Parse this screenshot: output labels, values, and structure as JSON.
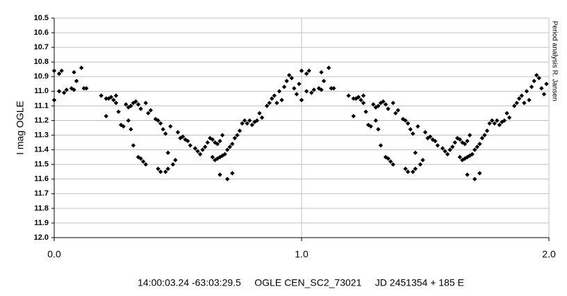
{
  "chart_data": {
    "type": "scatter",
    "ylabel": "I mag OGLE",
    "xlabel": "14:00:03.24 -63:03:29.5     OGLE CEN_SC2_73021     JD 2451354 + 185 E",
    "side_note": "Period analysis  R. Jansen",
    "color": "#000000",
    "invert_y": true,
    "grid": true,
    "xlim": [
      0,
      2
    ],
    "ylim": [
      10.5,
      12
    ],
    "xticks": [
      {
        "value": 0,
        "label": "0.0"
      },
      {
        "value": 1,
        "label": "1.0"
      },
      {
        "value": 2,
        "label": "2.0"
      }
    ],
    "yticks": [
      10.5,
      10.6,
      10.7,
      10.8,
      10.9,
      {
        "value": 11,
        "label": "11.0"
      },
      11.1,
      11.2,
      11.3,
      11.4,
      11.5,
      11.6,
      11.7,
      11.8,
      11.9,
      {
        "value": 12,
        "label": "12.0"
      }
    ],
    "x": [
      0.0,
      0.0,
      0.02,
      0.03,
      0.02,
      0.04,
      0.05,
      0.07,
      0.08,
      0.09,
      0.08,
      0.11,
      0.12,
      0.13,
      0.19,
      0.21,
      0.22,
      0.23,
      0.24,
      0.25,
      0.25,
      0.21,
      0.26,
      0.27,
      0.28,
      0.29,
      0.3,
      0.31,
      0.32,
      0.33,
      0.34,
      0.35,
      0.37,
      0.3,
      0.31,
      0.32,
      0.34,
      0.35,
      0.36,
      0.37,
      0.38,
      0.39,
      0.41,
      0.42,
      0.43,
      0.44,
      0.45,
      0.42,
      0.43,
      0.45,
      0.46,
      0.46,
      0.48,
      0.49,
      0.47,
      0.5,
      0.51,
      0.52,
      0.53,
      0.54,
      0.55,
      0.57,
      0.58,
      0.59,
      0.6,
      0.61,
      0.62,
      0.63,
      0.64,
      0.65,
      0.66,
      0.67,
      0.68,
      0.64,
      0.65,
      0.66,
      0.67,
      0.68,
      0.69,
      0.67,
      0.7,
      0.72,
      0.7,
      0.71,
      0.72,
      0.73,
      0.74,
      0.75,
      0.76,
      0.77,
      0.78,
      0.79,
      0.8,
      0.81,
      0.82,
      0.83,
      0.84,
      0.86,
      0.87,
      0.88,
      0.89,
      0.9,
      0.91,
      0.92,
      0.93,
      0.94,
      0.95,
      0.96,
      0.97,
      0.98,
      0.99,
      1.0,
      1.0,
      1.02,
      1.03,
      1.02,
      1.04,
      1.05,
      1.07,
      1.08,
      1.09,
      1.08,
      1.11,
      1.12,
      1.13,
      1.19,
      1.21,
      1.22,
      1.23,
      1.24,
      1.25,
      1.25,
      1.21,
      1.26,
      1.27,
      1.28,
      1.29,
      1.3,
      1.31,
      1.32,
      1.33,
      1.34,
      1.35,
      1.37,
      1.3,
      1.31,
      1.32,
      1.34,
      1.35,
      1.36,
      1.37,
      1.38,
      1.39,
      1.41,
      1.42,
      1.43,
      1.44,
      1.45,
      1.42,
      1.43,
      1.45,
      1.46,
      1.46,
      1.48,
      1.49,
      1.47,
      1.5,
      1.51,
      1.52,
      1.53,
      1.54,
      1.55,
      1.57,
      1.58,
      1.59,
      1.6,
      1.61,
      1.62,
      1.63,
      1.64,
      1.65,
      1.66,
      1.67,
      1.68,
      1.64,
      1.65,
      1.66,
      1.67,
      1.68,
      1.69,
      1.67,
      1.7,
      1.72,
      1.7,
      1.71,
      1.72,
      1.73,
      1.74,
      1.75,
      1.76,
      1.77,
      1.78,
      1.79,
      1.8,
      1.81,
      1.82,
      1.83,
      1.84,
      1.86,
      1.87,
      1.88,
      1.89,
      1.9,
      1.91,
      1.92,
      1.93,
      1.94,
      1.95,
      1.96,
      1.97,
      1.98,
      1.99
    ],
    "values": [
      10.86,
      11.06,
      10.88,
      10.86,
      11.0,
      11.01,
      10.99,
      10.98,
      10.87,
      10.93,
      10.99,
      10.84,
      10.98,
      10.98,
      11.03,
      11.05,
      11.05,
      11.04,
      11.06,
      11.03,
      11.08,
      11.17,
      11.14,
      11.23,
      11.24,
      11.09,
      11.11,
      11.1,
      11.08,
      11.07,
      11.09,
      11.12,
      11.08,
      11.2,
      11.26,
      11.37,
      11.45,
      11.46,
      11.48,
      11.5,
      11.15,
      11.13,
      11.19,
      11.2,
      11.22,
      11.26,
      11.29,
      11.53,
      11.55,
      11.55,
      11.53,
      11.42,
      11.5,
      11.47,
      11.24,
      11.28,
      11.32,
      11.31,
      11.33,
      11.34,
      11.37,
      11.39,
      11.41,
      11.43,
      11.4,
      11.38,
      11.35,
      11.32,
      11.33,
      11.35,
      11.36,
      11.34,
      11.3,
      11.45,
      11.47,
      11.46,
      11.45,
      11.44,
      11.43,
      11.57,
      11.6,
      11.56,
      11.4,
      11.38,
      11.36,
      11.32,
      11.3,
      11.27,
      11.22,
      11.2,
      11.22,
      11.2,
      11.23,
      11.21,
      11.2,
      11.15,
      11.18,
      11.1,
      11.08,
      11.05,
      11.03,
      11.08,
      11.0,
      11.06,
      10.97,
      10.93,
      10.89,
      10.91,
      10.98,
      11.02,
      10.95,
      10.86,
      11.06,
      10.88,
      10.86,
      11.0,
      11.01,
      10.99,
      10.98,
      10.87,
      10.93,
      10.99,
      10.84,
      10.98,
      10.98,
      11.03,
      11.05,
      11.05,
      11.04,
      11.06,
      11.03,
      11.08,
      11.17,
      11.14,
      11.23,
      11.24,
      11.09,
      11.11,
      11.1,
      11.08,
      11.07,
      11.09,
      11.12,
      11.08,
      11.2,
      11.26,
      11.37,
      11.45,
      11.46,
      11.48,
      11.5,
      11.15,
      11.13,
      11.19,
      11.2,
      11.22,
      11.26,
      11.29,
      11.53,
      11.55,
      11.55,
      11.53,
      11.42,
      11.5,
      11.47,
      11.24,
      11.28,
      11.32,
      11.31,
      11.33,
      11.34,
      11.37,
      11.39,
      11.41,
      11.43,
      11.4,
      11.38,
      11.35,
      11.32,
      11.33,
      11.35,
      11.36,
      11.34,
      11.3,
      11.45,
      11.47,
      11.46,
      11.45,
      11.44,
      11.43,
      11.57,
      11.6,
      11.56,
      11.4,
      11.38,
      11.36,
      11.32,
      11.3,
      11.27,
      11.22,
      11.2,
      11.22,
      11.2,
      11.23,
      11.21,
      11.2,
      11.15,
      11.18,
      11.1,
      11.08,
      11.05,
      11.03,
      11.08,
      11.0,
      11.06,
      10.97,
      10.93,
      10.89,
      10.91,
      10.98,
      11.02,
      10.95
    ]
  }
}
